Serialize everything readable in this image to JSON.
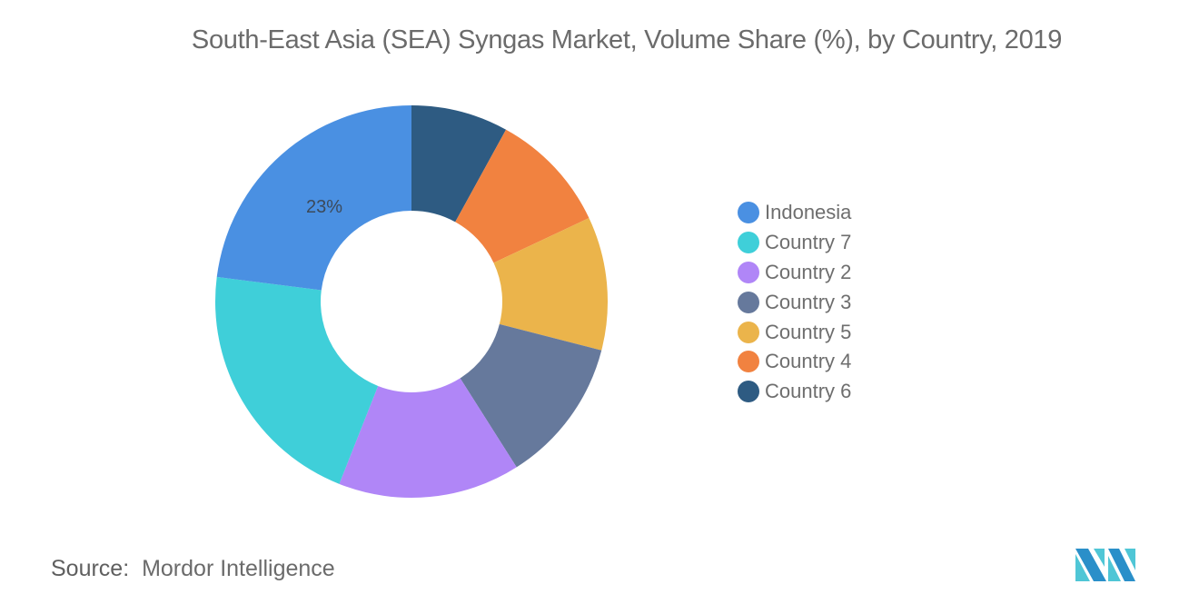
{
  "title": "South-East Asia (SEA) Syngas Market, Volume Share (%), by Country, 2019",
  "source_label": "Source:",
  "source_value": "Mordor Intelligence",
  "legend": [
    {
      "label": "Indonesia",
      "color": "#4a90e2"
    },
    {
      "label": "Country 7",
      "color": "#3fcfd9"
    },
    {
      "label": "Country 2",
      "color": "#b086f7"
    },
    {
      "label": "Country 3",
      "color": "#66799c"
    },
    {
      "label": "Country 5",
      "color": "#ebb44b"
    },
    {
      "label": "Country 4",
      "color": "#f18240"
    },
    {
      "label": "Country 6",
      "color": "#2e5b82"
    }
  ],
  "data_label": "23%",
  "chart_data": {
    "type": "pie",
    "subtype": "donut",
    "title": "South-East Asia (SEA) Syngas Market, Volume Share (%), by Country, 2019",
    "categories": [
      "Country 6",
      "Country 4",
      "Country 5",
      "Country 3",
      "Country 2",
      "Country 7",
      "Indonesia"
    ],
    "values": [
      8,
      10,
      11,
      12,
      15,
      21,
      23
    ],
    "colors": [
      "#2e5b82",
      "#f18240",
      "#ebb44b",
      "#66799c",
      "#b086f7",
      "#3fcfd9",
      "#4a90e2"
    ],
    "data_labels": {
      "Indonesia": "23%"
    },
    "legend_order": [
      "Indonesia",
      "Country 7",
      "Country 2",
      "Country 3",
      "Country 5",
      "Country 4",
      "Country 6"
    ],
    "legend_position": "right",
    "start_angle": 0,
    "direction": "clockwise"
  }
}
